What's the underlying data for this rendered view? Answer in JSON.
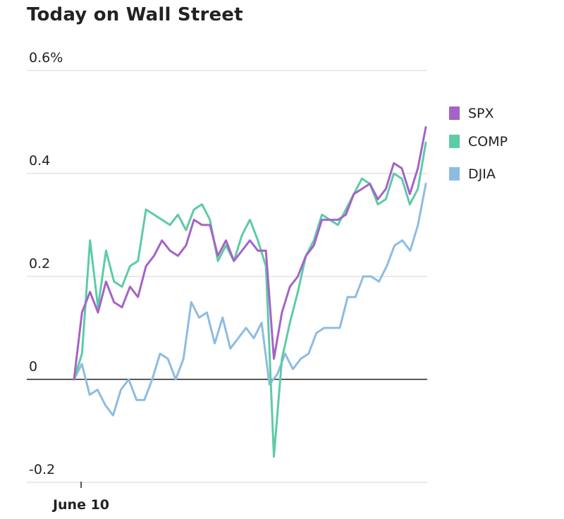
{
  "title": "Today on Wall Street",
  "chart_data": {
    "type": "line",
    "title": "Today on Wall Street",
    "xlabel": "",
    "ylabel": "",
    "x_tick_labels": [
      "June 10"
    ],
    "y_ticks": [
      {
        "value": 0.6,
        "label": "0.6%"
      },
      {
        "value": 0.4,
        "label": "0.4"
      },
      {
        "value": 0.2,
        "label": "0.2"
      },
      {
        "value": 0,
        "label": "0"
      },
      {
        "value": -0.2,
        "label": "-0.2"
      }
    ],
    "ylim": [
      -0.2,
      0.6
    ],
    "grid": true,
    "legend_position": "right",
    "series": [
      {
        "name": "SPX",
        "color": "#a463c8",
        "values": [
          0,
          0.13,
          0.17,
          0.13,
          0.19,
          0.15,
          0.14,
          0.18,
          0.16,
          0.22,
          0.24,
          0.27,
          0.25,
          0.24,
          0.26,
          0.31,
          0.3,
          0.3,
          0.24,
          0.27,
          0.23,
          0.25,
          0.27,
          0.25,
          0.25,
          0.04,
          0.13,
          0.18,
          0.2,
          0.24,
          0.26,
          0.31,
          0.31,
          0.31,
          0.32,
          0.36,
          0.37,
          0.38,
          0.35,
          0.37,
          0.42,
          0.41,
          0.36,
          0.41,
          0.49
        ]
      },
      {
        "name": "COMP",
        "color": "#5dcba6",
        "values": [
          0,
          0.05,
          0.27,
          0.14,
          0.25,
          0.19,
          0.18,
          0.22,
          0.23,
          0.33,
          0.32,
          0.31,
          0.3,
          0.32,
          0.29,
          0.33,
          0.34,
          0.31,
          0.23,
          0.26,
          0.23,
          0.28,
          0.31,
          0.27,
          0.22,
          -0.15,
          0.04,
          0.11,
          0.17,
          0.24,
          0.27,
          0.32,
          0.31,
          0.3,
          0.33,
          0.36,
          0.39,
          0.38,
          0.34,
          0.35,
          0.4,
          0.39,
          0.34,
          0.37,
          0.46
        ]
      },
      {
        "name": "DJIA",
        "color": "#8dbce3",
        "values": [
          0,
          0.03,
          -0.03,
          -0.02,
          -0.05,
          -0.07,
          -0.02,
          0,
          -0.04,
          -0.04,
          0,
          0.05,
          0.04,
          0,
          0.04,
          0.15,
          0.12,
          0.13,
          0.07,
          0.12,
          0.06,
          0.08,
          0.1,
          0.08,
          0.11,
          -0.01,
          0.01,
          0.05,
          0.02,
          0.04,
          0.05,
          0.09,
          0.1,
          0.1,
          0.1,
          0.16,
          0.16,
          0.2,
          0.2,
          0.19,
          0.22,
          0.26,
          0.27,
          0.25,
          0.3,
          0.38
        ]
      }
    ]
  }
}
